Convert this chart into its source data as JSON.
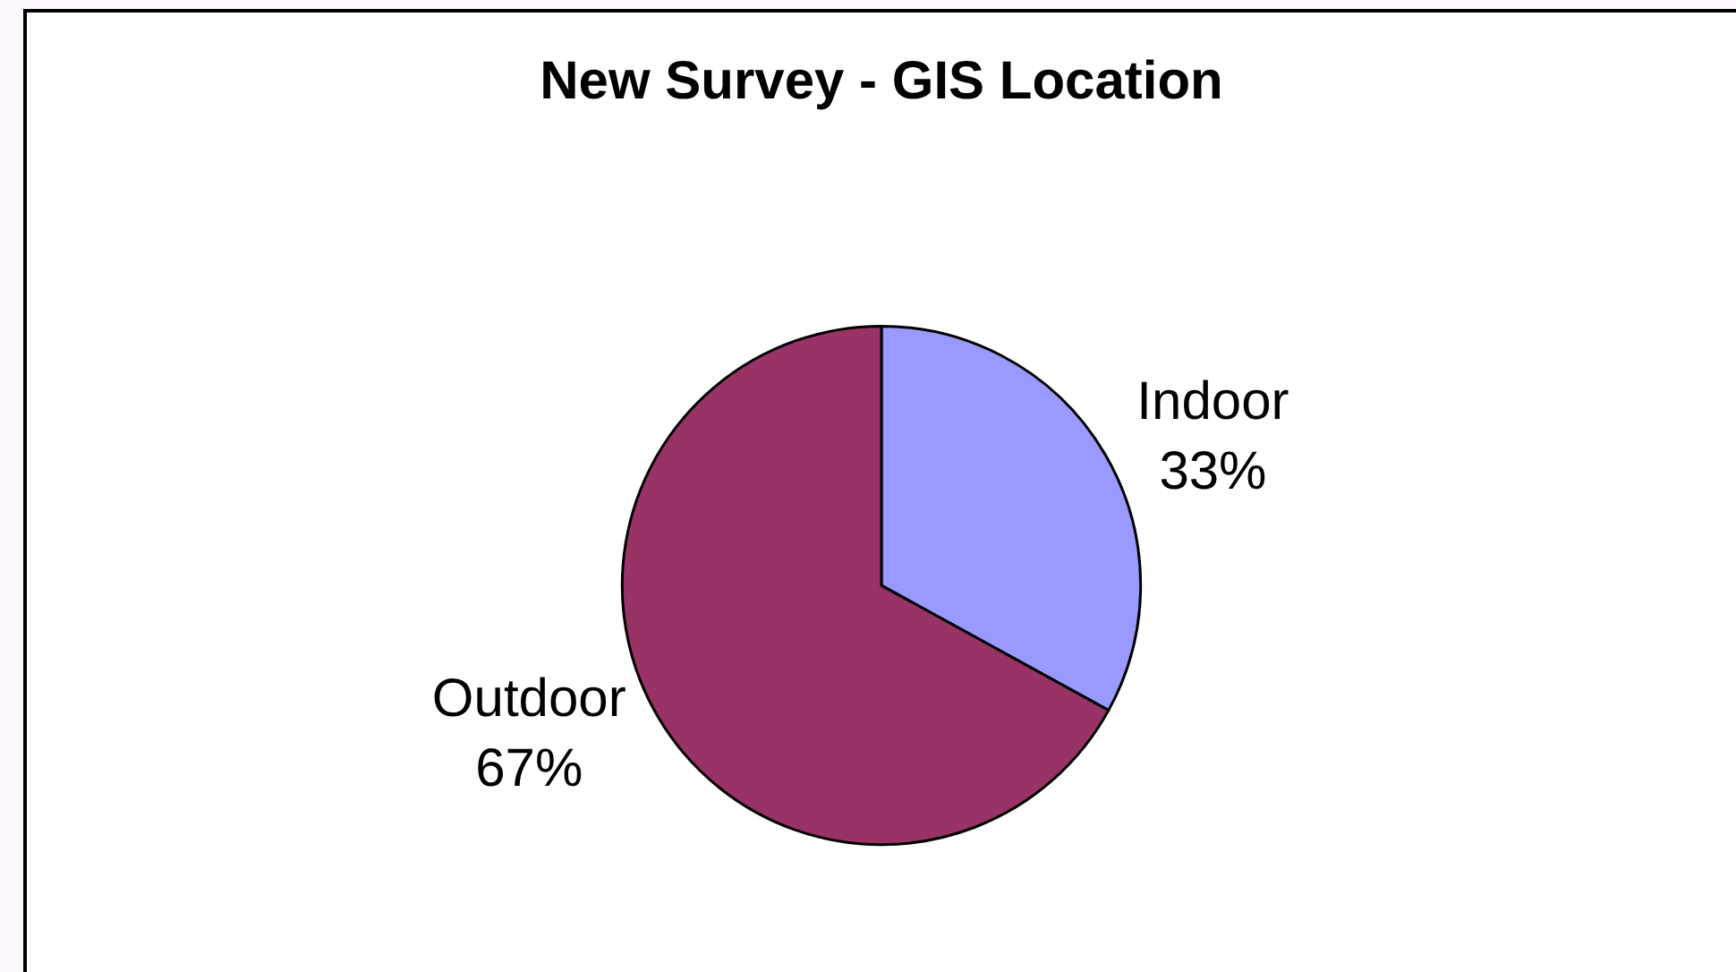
{
  "chart_data": {
    "type": "pie",
    "title": "New Survey - GIS Location",
    "categories": [
      "Indoor",
      "Outdoor"
    ],
    "values": [
      33,
      67
    ],
    "colors": [
      "#9999ff",
      "#993366"
    ],
    "value_labels": [
      "33%",
      "67%"
    ]
  }
}
